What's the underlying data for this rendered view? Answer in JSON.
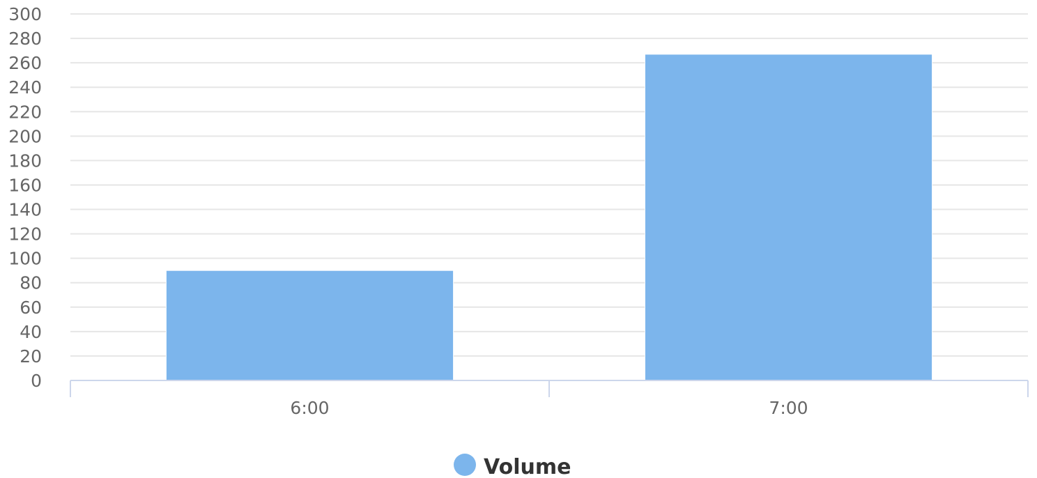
{
  "chart_data": {
    "type": "bar",
    "categories": [
      "6:00",
      "7:00"
    ],
    "series": [
      {
        "name": "Volume",
        "values": [
          90,
          267
        ],
        "color": "#7cb5ec"
      }
    ],
    "ylim": [
      0,
      300
    ],
    "yticks": [
      0,
      20,
      40,
      60,
      80,
      100,
      120,
      140,
      160,
      180,
      200,
      220,
      240,
      260,
      280,
      300
    ],
    "grid": true,
    "legend": "bottom-center",
    "colors": {
      "grid": "#e6e6e6",
      "axis": "#ccd6eb",
      "tick_text": "#666666",
      "legend_text": "#333333"
    }
  }
}
